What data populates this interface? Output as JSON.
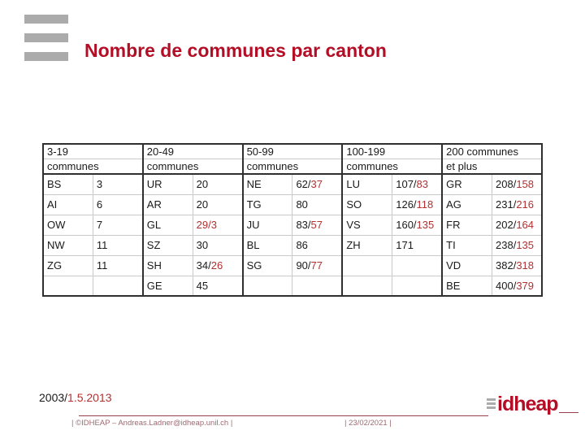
{
  "slide": {
    "title": "Nombre de communes par canton",
    "date_line": {
      "black_part": "2003/",
      "red_part": "1.5.2013"
    }
  },
  "table": {
    "column_headers": [
      {
        "line1": "3-19",
        "line2": "communes"
      },
      {
        "line1": "20-49",
        "line2": "communes"
      },
      {
        "line1": "50-99",
        "line2": "communes"
      },
      {
        "line1": "100-199",
        "line2": "communes"
      },
      {
        "line1": "200 communes",
        "line2": "et plus"
      }
    ],
    "rows": [
      [
        {
          "code": "BS",
          "black": "3",
          "red": ""
        },
        {
          "code": "UR",
          "black": "20",
          "red": ""
        },
        {
          "code": "NE",
          "black": "62/",
          "red": "37"
        },
        {
          "code": "LU",
          "black": "107/",
          "red": "83"
        },
        {
          "code": "GR",
          "black": "208/",
          "red": "158"
        }
      ],
      [
        {
          "code": "AI",
          "black": "6",
          "red": ""
        },
        {
          "code": "AR",
          "black": "20",
          "red": ""
        },
        {
          "code": "TG",
          "black": "80",
          "red": ""
        },
        {
          "code": "SO",
          "black": "126/",
          "red": "118"
        },
        {
          "code": "AG",
          "black": "231/",
          "red": "216"
        }
      ],
      [
        {
          "code": "OW",
          "black": "7",
          "red": ""
        },
        {
          "code": "GL",
          "black": "",
          "red": "29/3"
        },
        {
          "code": "JU",
          "black": "83/",
          "red": "57"
        },
        {
          "code": "VS",
          "black": "160/",
          "red": "135"
        },
        {
          "code": "FR",
          "black": "202/",
          "red": "164"
        }
      ],
      [
        {
          "code": "NW",
          "black": "11",
          "red": ""
        },
        {
          "code": "SZ",
          "black": "30",
          "red": ""
        },
        {
          "code": "BL",
          "black": "86",
          "red": ""
        },
        {
          "code": "ZH",
          "black": "171",
          "red": ""
        },
        {
          "code": "TI",
          "black": "238/",
          "red": "135"
        }
      ],
      [
        {
          "code": "ZG",
          "black": "11",
          "red": ""
        },
        {
          "code": "SH",
          "black": "34/",
          "red": "26"
        },
        {
          "code": "SG",
          "black": "90/",
          "red": "77"
        },
        {
          "code": "",
          "black": "",
          "red": ""
        },
        {
          "code": "VD",
          "black": "382/",
          "red": "318"
        }
      ],
      [
        {
          "code": "",
          "black": "",
          "red": ""
        },
        {
          "code": "GE",
          "black": "45",
          "red": ""
        },
        {
          "code": "",
          "black": "",
          "red": ""
        },
        {
          "code": "",
          "black": "",
          "red": ""
        },
        {
          "code": "BE",
          "black": "400/",
          "red": "379"
        }
      ]
    ]
  },
  "footer": {
    "left_text": "| ©IDHEAP – Andreas.Ladner@idheap.unil.ch |",
    "right_text": "| 23/02/2021 |",
    "logo_text": "idheap"
  },
  "icons": {
    "top_left_logo": "three-gray-bars-icon",
    "idheap_logo_bars": "three-gray-bars-icon"
  },
  "colors": {
    "brand_red": "#b30e26",
    "value_red": "#b23030",
    "footer_rose": "#9d6a70",
    "rule_red": "#96414b",
    "gray_bar": "#ababab",
    "border_dark": "#2f2f2f",
    "border_light": "#c9c9c9"
  }
}
